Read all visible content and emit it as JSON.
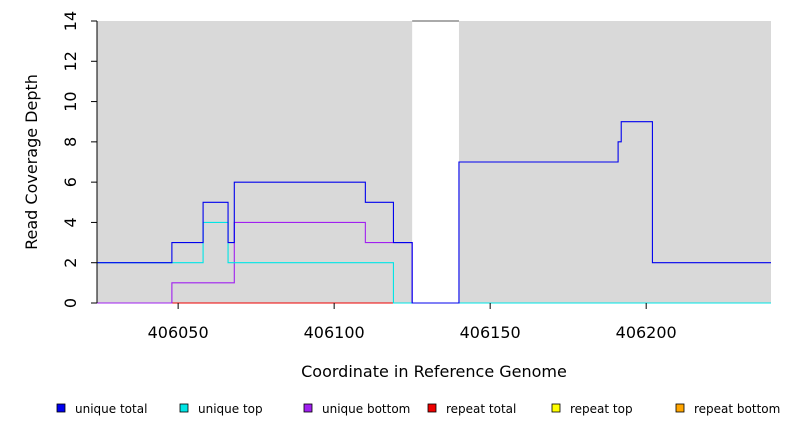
{
  "chart_data": {
    "type": "line",
    "xlabel": "Coordinate in Reference Genome",
    "ylabel": "Read Coverage Depth",
    "xlim": [
      406024,
      406240
    ],
    "ylim": [
      0,
      14
    ],
    "x_ticks": [
      406050,
      406100,
      406150,
      406200
    ],
    "x_tick_labels": [
      "406050",
      "406100",
      "406150",
      "406200"
    ],
    "y_ticks": [
      0,
      2,
      4,
      6,
      8,
      10,
      12,
      14
    ],
    "y_tick_labels": [
      "0",
      "2",
      "4",
      "6",
      "8",
      "10",
      "12",
      "14"
    ],
    "shaded_regions": [
      [
        406024,
        406125
      ],
      [
        406140,
        406240
      ]
    ],
    "shade_color": "#d9d9d9",
    "legend_position": "bottom",
    "series": [
      {
        "name": "unique total",
        "color": "#0000ee",
        "steps": [
          [
            406024,
            2
          ],
          [
            406048,
            3
          ],
          [
            406058,
            5
          ],
          [
            406066,
            3
          ],
          [
            406068,
            6
          ],
          [
            406110,
            5
          ],
          [
            406119,
            3
          ],
          [
            406125,
            0
          ],
          [
            406140,
            7
          ],
          [
            406191,
            8
          ],
          [
            406192,
            9
          ],
          [
            406202,
            2
          ],
          [
            406240,
            2
          ]
        ]
      },
      {
        "name": "unique top",
        "color": "#00e5e5",
        "steps": [
          [
            406024,
            2
          ],
          [
            406058,
            4
          ],
          [
            406066,
            2
          ],
          [
            406119,
            0
          ],
          [
            406125,
            0
          ],
          [
            406140,
            0
          ],
          [
            406240,
            0
          ]
        ]
      },
      {
        "name": "unique bottom",
        "color": "#a020f0",
        "steps": [
          [
            406024,
            0
          ],
          [
            406048,
            1
          ],
          [
            406068,
            4
          ],
          [
            406110,
            3
          ],
          [
            406125,
            0
          ],
          [
            406140,
            0
          ],
          [
            406240,
            0
          ]
        ]
      },
      {
        "name": "repeat total",
        "color": "#ee0000",
        "steps": [
          [
            406024,
            0
          ],
          [
            406240,
            0
          ]
        ]
      },
      {
        "name": "repeat top",
        "color": "#ffff00",
        "steps": [
          [
            406024,
            0
          ],
          [
            406240,
            0
          ]
        ]
      },
      {
        "name": "repeat bottom",
        "color": "#ffa500",
        "steps": [
          [
            406024,
            0
          ],
          [
            406119,
            0
          ]
        ]
      }
    ]
  }
}
